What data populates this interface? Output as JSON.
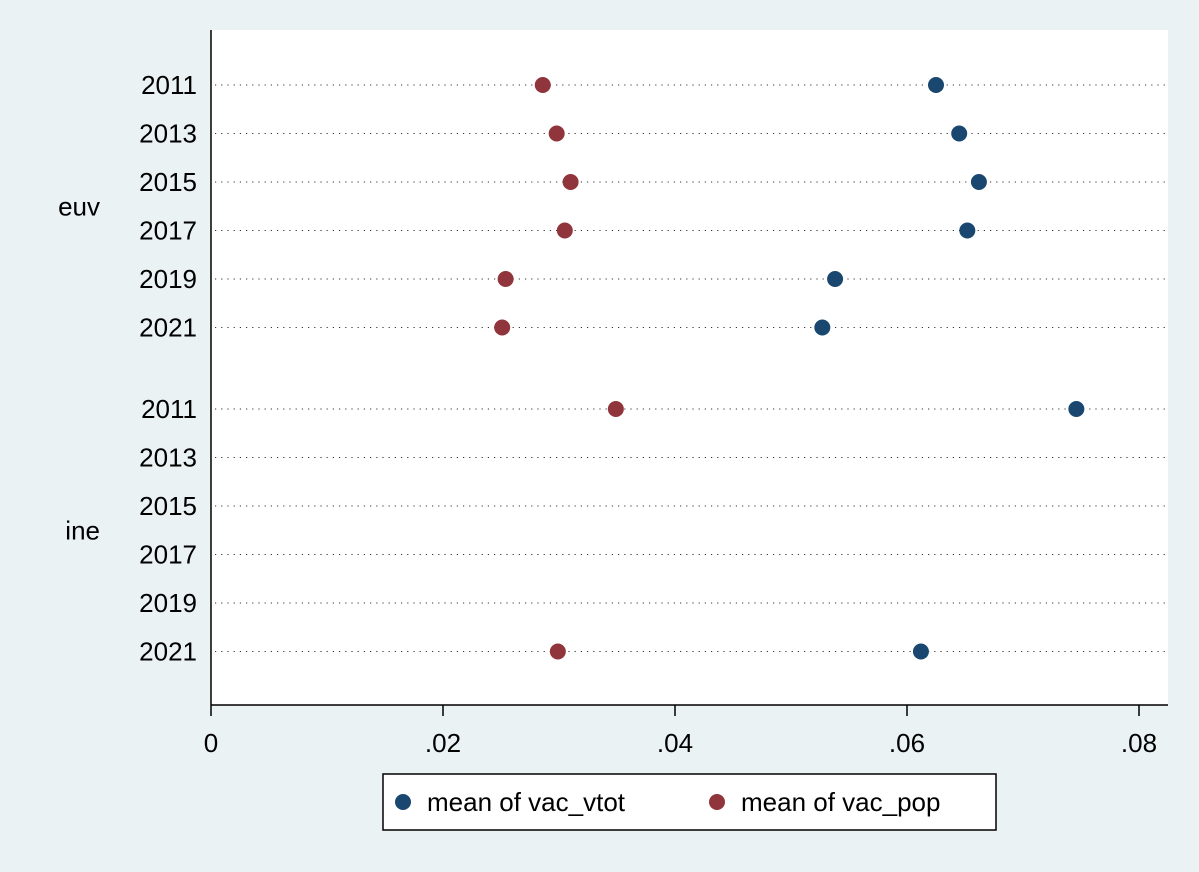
{
  "chart_data": {
    "type": "scatter",
    "orientation": "horizontal-dot",
    "groups": [
      {
        "name": "euv",
        "categories": [
          "2011",
          "2013",
          "2015",
          "2017",
          "2019",
          "2021"
        ]
      },
      {
        "name": "ine",
        "categories": [
          "2011",
          "2013",
          "2015",
          "2017",
          "2019",
          "2021"
        ]
      }
    ],
    "series": [
      {
        "name": "mean of vac_vtot",
        "color": "#1a476f",
        "values": [
          [
            0.0625,
            0.0645,
            0.0662,
            0.0652,
            0.0538,
            0.0527
          ],
          [
            0.0746,
            null,
            null,
            null,
            null,
            0.0612
          ]
        ]
      },
      {
        "name": "mean of vac_pop",
        "color": "#90353b",
        "values": [
          [
            0.0286,
            0.0298,
            0.031,
            0.0305,
            0.0254,
            0.0251
          ],
          [
            0.0349,
            null,
            null,
            null,
            null,
            0.0299
          ]
        ]
      }
    ],
    "x_ticks": [
      {
        "value": 0,
        "label": "0"
      },
      {
        "value": 0.02,
        "label": ".02"
      },
      {
        "value": 0.04,
        "label": ".04"
      },
      {
        "value": 0.06,
        "label": ".06"
      },
      {
        "value": 0.08,
        "label": ".08"
      }
    ],
    "xlim": [
      0,
      0.0825
    ],
    "grid": "dotted horizontal lines per category",
    "legend": "bottom-center"
  }
}
